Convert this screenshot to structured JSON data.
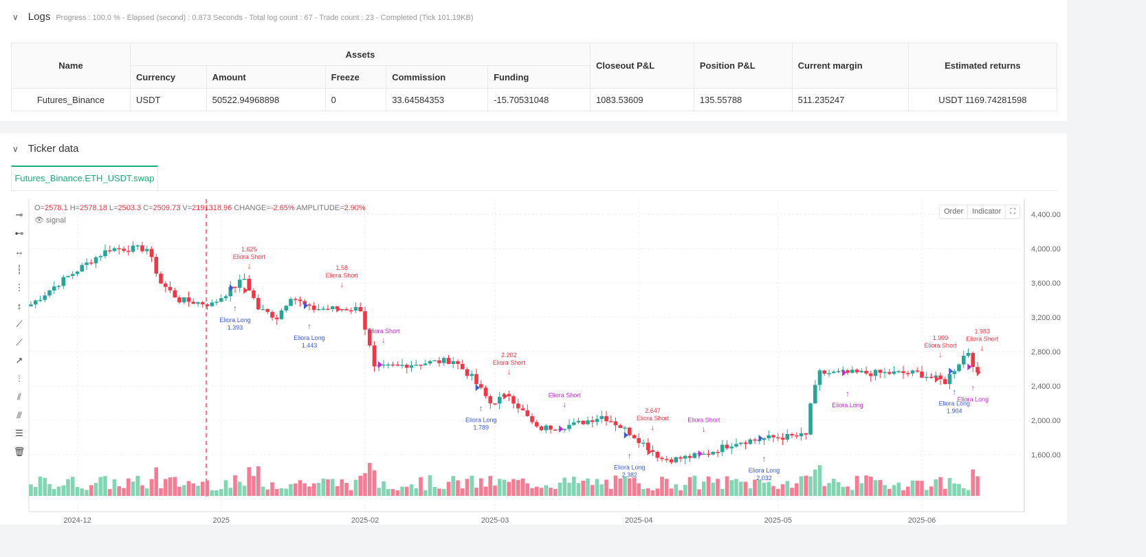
{
  "logs": {
    "title": "Logs",
    "summary": "Progress : 100.0 % - Elapsed (second) : 0.873  Seconds - Total log count : 67 - Trade count : 23 - Completed (Tick 101.19KB)"
  },
  "table": {
    "headers": {
      "name": "Name",
      "assets": "Assets",
      "currency": "Currency",
      "amount": "Amount",
      "freeze": "Freeze",
      "commission": "Commission",
      "funding": "Funding",
      "closeout": "Closeout P&L",
      "position": "Position P&L",
      "margin": "Current margin",
      "returns": "Estimated returns"
    },
    "row": {
      "name": "Futures_Binance",
      "currency": "USDT",
      "amount": "50522.94968898",
      "freeze": "0",
      "commission": "33.64584353",
      "funding": "-15.70531048",
      "closeout": "1083.53609",
      "position": "135.55788",
      "margin": "511.235247",
      "returns": "USDT 1169.74281598"
    }
  },
  "ticker": {
    "title": "Ticker data",
    "tab": "Futures_Binance.ETH_USDT.swap",
    "ohlc": {
      "o_label": "O=",
      "o": "2578.1",
      "h_label": "H=",
      "h": "2578.18",
      "l_label": "L=",
      "l": "2503.3",
      "c_label": "C=",
      "c": "2509.73",
      "v_label": "V=",
      "v": "2191318.96",
      "chg_label": "CHANGE=",
      "chg": "-2.65%",
      "amp_label": "AMPLITUDE=",
      "amp": "2.90%"
    },
    "signal": "signal",
    "buttons": {
      "order": "Order",
      "indicator": "Indicator"
    }
  },
  "colors": {
    "up": "#26a69a",
    "down": "#f23645",
    "long": "#3b5bdb",
    "purple": "#c026d3"
  },
  "chart_data": {
    "type": "candlestick",
    "ylim": [
      1200,
      4600
    ],
    "yticks": [
      1600,
      2000,
      2400,
      2800,
      3200,
      3600,
      4000,
      4400
    ],
    "ytick_labels": [
      "1,600.00",
      "2,000.00",
      "2,400.00",
      "2,800.00",
      "3,200.00",
      "3,600.00",
      "4,000.00",
      "4,400.00"
    ],
    "xticks": [
      {
        "day": 10,
        "label": "2024-12"
      },
      {
        "day": 41,
        "label": "2025"
      },
      {
        "day": 72,
        "label": "2025-02"
      },
      {
        "day": 100,
        "label": "2025-03"
      },
      {
        "day": 131,
        "label": "2025-04"
      },
      {
        "day": 161,
        "label": "2025-05"
      },
      {
        "day": 192,
        "label": "2025-06"
      }
    ],
    "price_anchors": [
      [
        0,
        3350
      ],
      [
        6,
        3600
      ],
      [
        14,
        3900
      ],
      [
        17,
        4000
      ],
      [
        25,
        4000
      ],
      [
        28,
        3600
      ],
      [
        32,
        3400
      ],
      [
        39,
        3350
      ],
      [
        46,
        3650
      ],
      [
        49,
        3300
      ],
      [
        53,
        3200
      ],
      [
        56,
        3450
      ],
      [
        60,
        3300
      ],
      [
        66,
        3300
      ],
      [
        71,
        3300
      ],
      [
        73,
        2850
      ],
      [
        74,
        2600
      ],
      [
        81,
        2650
      ],
      [
        91,
        2700
      ],
      [
        95,
        2500
      ],
      [
        99,
        2200
      ],
      [
        103,
        2300
      ],
      [
        109,
        1900
      ],
      [
        117,
        1950
      ],
      [
        123,
        2050
      ],
      [
        125,
        2000
      ],
      [
        130,
        1820
      ],
      [
        136,
        1550
      ],
      [
        139,
        1550
      ],
      [
        145,
        1600
      ],
      [
        152,
        1750
      ],
      [
        160,
        1800
      ],
      [
        167,
        1820
      ],
      [
        168,
        2200
      ],
      [
        170,
        2550
      ],
      [
        180,
        2550
      ],
      [
        191,
        2550
      ],
      [
        197,
        2450
      ],
      [
        201,
        2750
      ],
      [
        202,
        2800
      ],
      [
        204,
        2520
      ]
    ],
    "signals": [
      {
        "day": 47,
        "type": "short",
        "text": "Eliora Short",
        "value": "1.625"
      },
      {
        "day": 44,
        "type": "long",
        "text": "Eliora Long",
        "value": "1.393"
      },
      {
        "day": 60,
        "type": "long",
        "text": "Eliora Long",
        "value": "1.443"
      },
      {
        "day": 67,
        "type": "short",
        "text": "Eliora Short",
        "value": "1.58"
      },
      {
        "day": 76,
        "type": "pshort",
        "text": "Eliora Short",
        "value": ""
      },
      {
        "day": 97,
        "type": "long",
        "text": "Eliora Long",
        "value": "1.789"
      },
      {
        "day": 103,
        "type": "short",
        "text": "Eliora Short",
        "value": "2.202"
      },
      {
        "day": 115,
        "type": "pshort",
        "text": "Eliora Short",
        "value": ""
      },
      {
        "day": 129,
        "type": "long",
        "text": "Eliora Long",
        "value": "2.382"
      },
      {
        "day": 134,
        "type": "short",
        "text": "Eliora Short",
        "value": "2.647"
      },
      {
        "day": 145,
        "type": "pshort",
        "text": "Eliora Short",
        "value": ""
      },
      {
        "day": 158,
        "type": "long",
        "text": "Eliora Long",
        "value": "2.032"
      },
      {
        "day": 176,
        "type": "plong",
        "text": "Eliora Long",
        "value": ""
      },
      {
        "day": 196,
        "type": "short",
        "text": "Eliora Short",
        "value": "1.999"
      },
      {
        "day": 199,
        "type": "long",
        "text": "Eliora Long",
        "value": "1.904"
      },
      {
        "day": 203,
        "type": "plong",
        "text": "Eliora Long",
        "value": ""
      },
      {
        "day": 205,
        "type": "short",
        "text": "Eliora Short",
        "value": "1.983"
      }
    ]
  }
}
